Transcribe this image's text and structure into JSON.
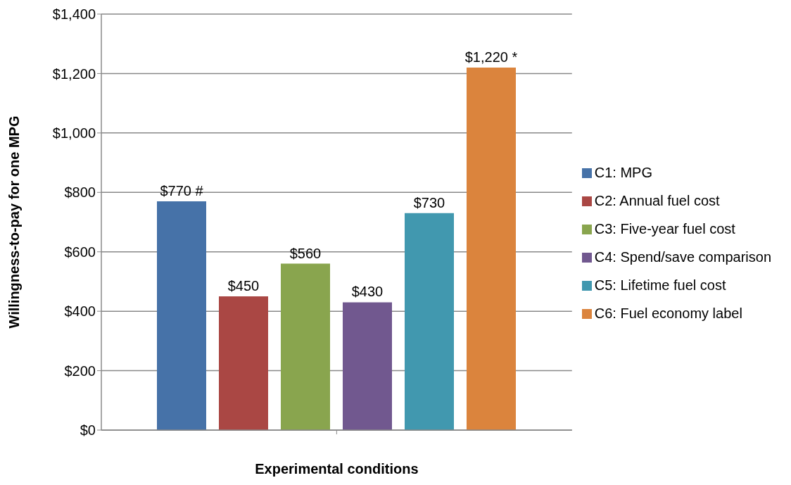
{
  "chart_data": {
    "type": "bar",
    "xlabel": "Experimental conditions",
    "ylabel": "Willingness-to-pay for one MPG",
    "categories": [
      null
    ],
    "series": [
      {
        "name": "C1: MPG",
        "color": "#4672a8",
        "values": [
          770
        ],
        "value_labels": [
          "$770 #"
        ]
      },
      {
        "name": "C2: Annual fuel cost",
        "color": "#aa4744",
        "values": [
          450
        ],
        "value_labels": [
          "$450"
        ]
      },
      {
        "name": "C3: Five-year fuel cost",
        "color": "#89a54e",
        "values": [
          560
        ],
        "value_labels": [
          "$560"
        ]
      },
      {
        "name": "C4: Spend/save comparison",
        "color": "#71588f",
        "values": [
          430
        ],
        "value_labels": [
          "$430"
        ]
      },
      {
        "name": "C5: Lifetime fuel cost",
        "color": "#4198af",
        "values": [
          730
        ],
        "value_labels": [
          "$730"
        ]
      },
      {
        "name": "C6: Fuel economy label",
        "color": "#db843d",
        "values": [
          1220
        ],
        "value_labels": [
          "$1,220 *"
        ]
      }
    ],
    "ylim": [
      0,
      1400
    ],
    "yticks": [
      {
        "value": 0,
        "label": "$0"
      },
      {
        "value": 200,
        "label": "$200"
      },
      {
        "value": 400,
        "label": "$400"
      },
      {
        "value": 600,
        "label": "$600"
      },
      {
        "value": 800,
        "label": "$800"
      },
      {
        "value": 1000,
        "label": "$1,000"
      },
      {
        "value": 1200,
        "label": "$1,200"
      },
      {
        "value": 1400,
        "label": "$1,400"
      }
    ],
    "grid": "y",
    "legend": "right"
  }
}
